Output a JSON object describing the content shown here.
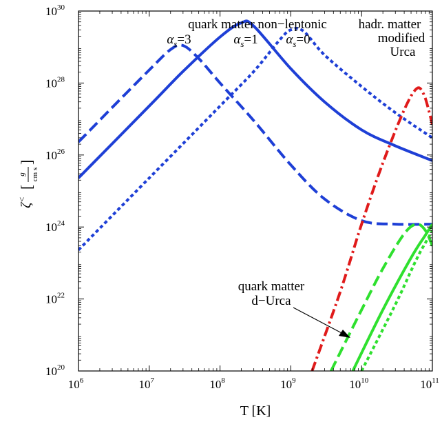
{
  "chart_data": {
    "type": "line",
    "xlabel": "T [K]",
    "ylabel": "ζ< [g / cm s]",
    "ylabel_symbol": "ζ",
    "ylabel_sup": "<",
    "ylabel_unit_num": "g",
    "ylabel_unit_den": "cm s",
    "x_scale": "log",
    "y_scale": "log",
    "xlim": [
      1000000,
      100000000000
    ],
    "ylim": [
      1e+20,
      1e+30
    ],
    "grid": false,
    "x_ticks": [
      {
        "base": "10",
        "exp": "6",
        "value": 1000000
      },
      {
        "base": "10",
        "exp": "7",
        "value": 10000000
      },
      {
        "base": "10",
        "exp": "8",
        "value": 100000000
      },
      {
        "base": "10",
        "exp": "9",
        "value": 1000000000
      },
      {
        "base": "10",
        "exp": "10",
        "value": 10000000000
      },
      {
        "base": "10",
        "exp": "11",
        "value": 100000000000
      }
    ],
    "y_ticks": [
      {
        "base": "10",
        "exp": "20",
        "value": 1e+20
      },
      {
        "base": "10",
        "exp": "22",
        "value": 1e+22
      },
      {
        "base": "10",
        "exp": "24",
        "value": 1e+24
      },
      {
        "base": "10",
        "exp": "26",
        "value": 1e+26
      },
      {
        "base": "10",
        "exp": "28",
        "value": 1e+28
      },
      {
        "base": "10",
        "exp": "30",
        "value": 1e+30
      }
    ],
    "series": [
      {
        "group": "quark matter non-leptonic",
        "label": "αs=3",
        "color": "#1e3fd6",
        "style": "dashed",
        "x": [
          1000000,
          3000000,
          10000000,
          20000000,
          30000000,
          50000000,
          100000000,
          300000000,
          1000000000,
          3000000000,
          10000000000,
          30000000000,
          100000000000
        ],
        "y": [
          2.3e+26,
          2.1e+27,
          2.3e+28,
          8.5e+28,
          1.1e+29,
          4.8e+28,
          1e+28,
          9e+26,
          5.3e+25,
          6e+24,
          1.5e+24,
          1.2e+24,
          1.2e+24
        ]
      },
      {
        "group": "quark matter non-leptonic",
        "label": "αs=1",
        "color": "#1e3fd6",
        "style": "solid",
        "x": [
          1000000,
          10000000,
          30000000,
          100000000,
          200000000,
          300000000,
          1000000000,
          3000000000,
          10000000000,
          30000000000,
          100000000000
        ],
        "y": [
          2.3e+25,
          2.3e+27,
          2.1e+28,
          1.9e+29,
          4.7e+29,
          3.8e+29,
          2.5e+28,
          3e+27,
          5e+26,
          1.8e+26,
          7e+25
        ]
      },
      {
        "group": "quark matter non-leptonic",
        "label": "αs=0",
        "color": "#1e3fd6",
        "style": "dotted",
        "x": [
          1000000,
          10000000,
          100000000,
          300000000,
          700000000,
          1000000000,
          1500000000,
          3000000000,
          10000000000,
          30000000000,
          100000000000
        ],
        "y": [
          2.3e+23,
          2.3e+25,
          2.3e+27,
          2.1e+28,
          1.6e+29,
          3e+29,
          2.8e+29,
          6e+28,
          8e+27,
          1.5e+27,
          3e+26
        ]
      },
      {
        "group": "hadr. matter modified Urca",
        "label": "",
        "color": "#e01b1b",
        "style": "dashdot",
        "x": [
          2000000000,
          5000000000,
          10000000000,
          20000000000,
          40000000000,
          60000000000,
          75000000000,
          90000000000,
          100000000000
        ],
        "y": [
          1e+20,
          1.6e+22,
          1.2e+24,
          6e+25,
          1.8e+27,
          7e+27,
          5e+27,
          1.6e+27,
          7e+26
        ]
      },
      {
        "group": "quark matter d-Urca",
        "label": "αs=3",
        "color": "#2fe02f",
        "style": "dashed",
        "x": [
          3700000000,
          10000000000,
          20000000000,
          40000000000,
          60000000000,
          80000000000,
          100000000000
        ],
        "y": [
          1e+20,
          5e+21,
          7e+22,
          6.5e+23,
          1.2e+24,
          8e+23,
          3e+23
        ]
      },
      {
        "group": "quark matter d-Urca",
        "label": "αs=1",
        "color": "#2fe02f",
        "style": "solid",
        "x": [
          7500000000,
          20000000000,
          50000000000,
          80000000000,
          100000000000
        ],
        "y": [
          1e+20,
          5e+21,
          1.4e+23,
          6e+23,
          1.2e+24
        ]
      },
      {
        "group": "quark matter d-Urca",
        "label": "αs=0",
        "color": "#2fe02f",
        "style": "dotted",
        "x": [
          10000000000,
          30000000000,
          60000000000,
          90000000000,
          100000000000
        ],
        "y": [
          1e+20,
          7e+21,
          1.3e+23,
          5.5e+23,
          8e+23
        ]
      }
    ],
    "annotations": {
      "quark_nonleptonic": "quark matter non−leptonic",
      "alpha_symbol": "α",
      "alpha_sub": "s",
      "alpha3_value": "=3",
      "alpha1_value": "=1",
      "alpha0_value": "=0",
      "hadr_line1": "hadr. matter",
      "hadr_line2": "modified",
      "hadr_line3": "Urca",
      "durca_line1": "quark matter",
      "durca_line2": "d−Urca"
    }
  }
}
